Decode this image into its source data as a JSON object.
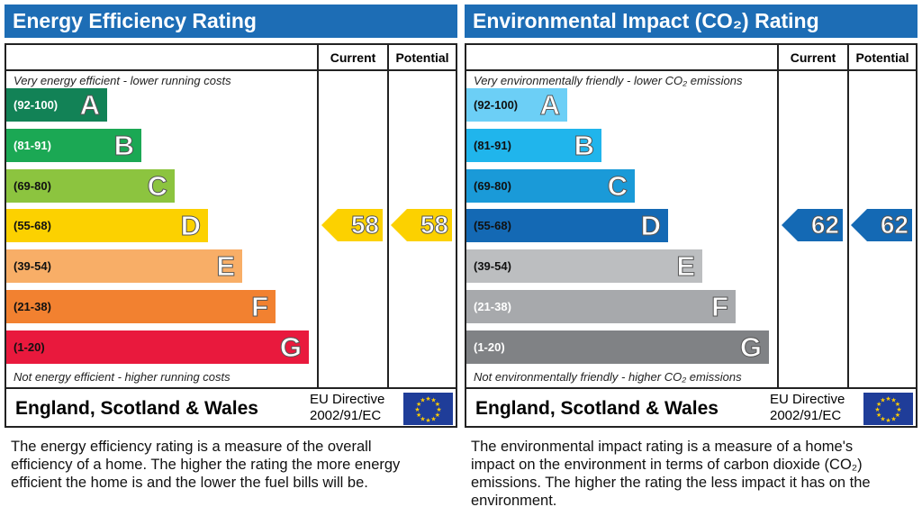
{
  "chart_data": [
    {
      "type": "table",
      "title": "Energy Efficiency Rating",
      "columns": [
        "Current",
        "Potential"
      ],
      "top_caption": "Very energy efficient - lower running costs",
      "bottom_caption": "Not energy efficient - higher running costs",
      "bands": [
        {
          "range": "(92-100)",
          "letter": "A",
          "color": "#128256",
          "text_color": "#fff"
        },
        {
          "range": "(81-91)",
          "letter": "B",
          "color": "#1ba854",
          "text_color": "#fff"
        },
        {
          "range": "(69-80)",
          "letter": "C",
          "color": "#8cc43f",
          "text_color": "#111"
        },
        {
          "range": "(55-68)",
          "letter": "D",
          "color": "#fcd100",
          "text_color": "#111"
        },
        {
          "range": "(39-54)",
          "letter": "E",
          "color": "#f8ae67",
          "text_color": "#111"
        },
        {
          "range": "(21-38)",
          "letter": "F",
          "color": "#f28130",
          "text_color": "#111"
        },
        {
          "range": "(1-20)",
          "letter": "G",
          "color": "#e9193d",
          "text_color": "#111"
        }
      ],
      "current": 58,
      "potential": 58,
      "rating_band": "D",
      "arrow_color": "#fcd100",
      "footer": "England, Scotland & Wales",
      "directive": [
        "EU Directive",
        "2002/91/EC"
      ],
      "description": "The energy efficiency rating is a measure of the overall efficiency of a home. The higher the rating the more energy efficient the home is and the lower the fuel bills will be."
    },
    {
      "type": "table",
      "title": "Environmental Impact (CO₂) Rating",
      "columns": [
        "Current",
        "Potential"
      ],
      "top_caption": "Very environmentally friendly - lower CO₂ emissions",
      "bottom_caption": "Not environmentally friendly - higher CO₂ emissions",
      "bands": [
        {
          "range": "(92-100)",
          "letter": "A",
          "color": "#6ccff6",
          "text_color": "#111"
        },
        {
          "range": "(81-91)",
          "letter": "B",
          "color": "#20b5ec",
          "text_color": "#111"
        },
        {
          "range": "(69-80)",
          "letter": "C",
          "color": "#1a9ad8",
          "text_color": "#111"
        },
        {
          "range": "(55-68)",
          "letter": "D",
          "color": "#1469b4",
          "text_color": "#111"
        },
        {
          "range": "(39-54)",
          "letter": "E",
          "color": "#bcbec0",
          "text_color": "#111"
        },
        {
          "range": "(21-38)",
          "letter": "F",
          "color": "#a7a9ac",
          "text_color": "#fff"
        },
        {
          "range": "(1-20)",
          "letter": "G",
          "color": "#808285",
          "text_color": "#fff"
        }
      ],
      "current": 62,
      "potential": 62,
      "rating_band": "D",
      "arrow_color": "#1469b4",
      "footer": "England, Scotland & Wales",
      "directive": [
        "EU Directive",
        "2002/91/EC"
      ],
      "description": "The environmental impact rating is a measure of a home's impact on the environment in terms of carbon dioxide (CO₂) emissions. The higher the rating the less impact it has on the environment."
    }
  ]
}
